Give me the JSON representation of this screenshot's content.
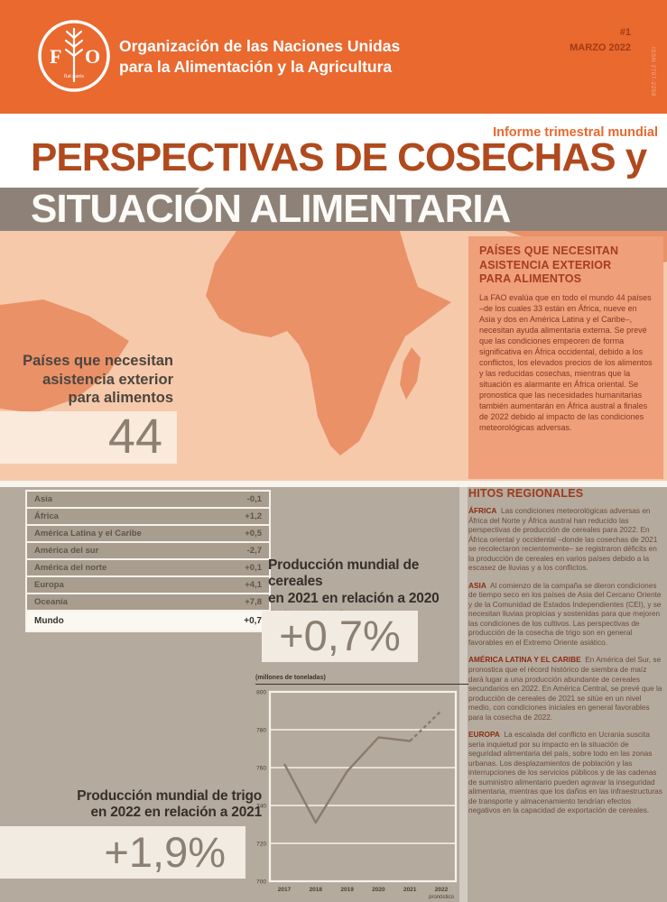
{
  "header": {
    "org_line1": "Organización de las Naciones Unidas",
    "org_line2": "para la Alimentación y la Agricultura",
    "issue_number": "#1",
    "issue_date": "MARZO 2022",
    "issn": "ISSN 2707-2258"
  },
  "masthead": {
    "kicker": "Informe trimestral mundial",
    "title_line1": "PERSPECTIVAS DE COSECHAS y",
    "title_line2": "SITUACIÓN ALIMENTARIA"
  },
  "map_section": {
    "label": "Países que necesitan\nasistencia exterior\npara alimentos",
    "count": "44",
    "sidebar": {
      "heading": "PAÍSES QUE NECESITAN\nASISTENCIA EXTERIOR\nPARA ALIMENTOS",
      "body": "La FAO evalúa que en todo el mundo 44 países –de los cuales 33 están en África, nueve en Asia y dos en América Latina y el Caribe–, necesitan ayuda alimentaria externa. Se prevé que las condiciones empeoren de forma significativa en África occidental, debido a los conflictos, los elevados precios de los alimentos y las reducidas cosechas, mientras que la situación es alarmante en África oriental. Se pronostica que las necesidades humanitarias también aumentarán en África austral a finales de 2022 debido al impacto de las condiciones meteorológicas adversas."
    }
  },
  "production_table": {
    "rows": [
      {
        "region": "Asia",
        "value": "-0,1"
      },
      {
        "region": "África",
        "value": "+1,2"
      },
      {
        "region": "América Latina y el Caribe",
        "value": "+0,5"
      },
      {
        "region": "América del sur",
        "value": "-2,7"
      },
      {
        "region": "América del norte",
        "value": "+0,1"
      },
      {
        "region": "Europa",
        "value": "+4,1"
      },
      {
        "region": "Oceanía",
        "value": "+7,8"
      }
    ],
    "total": {
      "region": "Mundo",
      "value": "+0,7"
    }
  },
  "cereals": {
    "heading": "Producción mundial de cereales\nen 2021 en relación a 2020",
    "caption": "(cambio porcentual anual)",
    "value": "+0,7%"
  },
  "wheat": {
    "heading": "Producción mundial de trigo\nen 2022 en relación a 2021",
    "value": "+1,9%"
  },
  "chart_data": {
    "type": "line",
    "title": "Producción mundial de trigo",
    "unit_label": "(millones de toneladas)",
    "x": [
      2017,
      2018,
      2019,
      2020,
      2021,
      2022
    ],
    "x_tick_labels": [
      "2017",
      "2018",
      "2019",
      "2020",
      "2021",
      "2022"
    ],
    "last_x_sublabel": "pronóstico",
    "values": [
      762,
      731,
      758,
      776,
      774,
      790
    ],
    "forecast_from_index": 4,
    "ylim": [
      700,
      800
    ],
    "yticks": [
      700,
      720,
      740,
      760,
      780,
      800
    ],
    "grid": true,
    "line_color": "#8b7b6d",
    "legend_position": "none"
  },
  "hitos": {
    "heading": "HITOS REGIONALES",
    "items": [
      {
        "region": "ÁFRICA",
        "text": "Las condiciones meteorológicas adversas en África del Norte y África austral han reducido las perspectivas de producción de cereales para 2022. En África oriental y occidental –donde las cosechas de 2021 se recolectaron recientemente– se registraron déficits en la producción de cereales en varios países debido a la escasez de lluvias y a los conflictos."
      },
      {
        "region": "ASIA",
        "text": "Al comienzo de la campaña se dieron condiciones de tiempo seco en los países de Asia del Cercano Oriente y de la Comunidad de Estados Independientes (CEI), y se necesitan lluvias propicias y sostenidas para que mejoren las condiciones de los cultivos. Las perspectivas de producción de la cosecha de trigo son en general favorables en el Extremo Oriente asiático."
      },
      {
        "region": "AMÉRICA LATINA Y EL CARIBE",
        "text": "En América del Sur, se pronostica que el récord histórico de siembra de maíz dará lugar a una producción abundante de cereales secundarios en 2022. En América Central, se prevé que la producción de cereales de 2021 se sitúe en un nivel medio, con condiciones iniciales en general favorables para la cosecha de 2022."
      },
      {
        "region": "EUROPA",
        "text": "La escalada del conflicto en Ucrania suscita seria inquietud por su impacto en la situación de seguridad alimentaria del país, sobre todo en las zonas urbanas. Los desplazamientos de población y las interrupciones de los servicios públicos y de las cadenas de suministro alimentario pueden agravar la inseguridad alimentaria, mientras que los daños en las infraestructuras de transporte y almacenamiento tendrían efectos negativos en la capacidad de exportación de cereales."
      }
    ]
  },
  "colors": {
    "header_orange": "#e9692f",
    "title_rust": "#b04a1e",
    "band_gray": "#8e8278",
    "map_bg": "#f6c9ab",
    "land": "#ea9168",
    "salmon_panel": "#f09f7b",
    "lower_taupe": "#b5aa9e",
    "accent_red": "#9e3a1a",
    "value_gray": "#8b8073"
  }
}
